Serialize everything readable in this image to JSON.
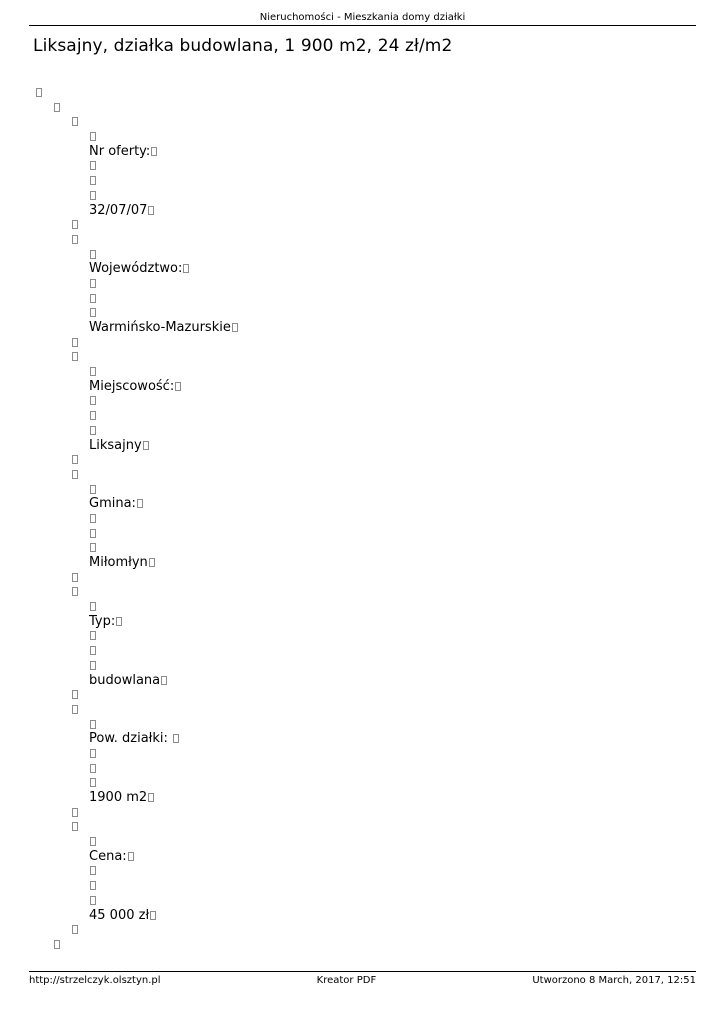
{
  "header": {
    "title": "Nieruchomości - Mieszkania domy działki"
  },
  "page_title": "Liksajny, działka budowlana, 1 900 m2, 24 zł/m2",
  "tree": {
    "rows": [
      {
        "indent": 0,
        "text": ""
      },
      {
        "indent": 1,
        "text": ""
      },
      {
        "indent": 2,
        "text": ""
      },
      {
        "indent": 3,
        "text": ""
      },
      {
        "indent": 3,
        "text": "Nr oferty:"
      },
      {
        "indent": 3,
        "text": ""
      },
      {
        "indent": 3,
        "text": ""
      },
      {
        "indent": 3,
        "text": ""
      },
      {
        "indent": 3,
        "text": "32/07/07"
      },
      {
        "indent": 2,
        "text": ""
      },
      {
        "indent": 2,
        "text": ""
      },
      {
        "indent": 3,
        "text": ""
      },
      {
        "indent": 3,
        "text": "Województwo:"
      },
      {
        "indent": 3,
        "text": ""
      },
      {
        "indent": 3,
        "text": ""
      },
      {
        "indent": 3,
        "text": ""
      },
      {
        "indent": 3,
        "text": "Warmińsko-Mazurskie"
      },
      {
        "indent": 2,
        "text": ""
      },
      {
        "indent": 2,
        "text": ""
      },
      {
        "indent": 3,
        "text": ""
      },
      {
        "indent": 3,
        "text": "Miejscowość:"
      },
      {
        "indent": 3,
        "text": ""
      },
      {
        "indent": 3,
        "text": ""
      },
      {
        "indent": 3,
        "text": ""
      },
      {
        "indent": 3,
        "text": "Liksajny"
      },
      {
        "indent": 2,
        "text": ""
      },
      {
        "indent": 2,
        "text": ""
      },
      {
        "indent": 3,
        "text": ""
      },
      {
        "indent": 3,
        "text": "Gmina:"
      },
      {
        "indent": 3,
        "text": ""
      },
      {
        "indent": 3,
        "text": ""
      },
      {
        "indent": 3,
        "text": ""
      },
      {
        "indent": 3,
        "text": "Miłomłyn"
      },
      {
        "indent": 2,
        "text": ""
      },
      {
        "indent": 2,
        "text": ""
      },
      {
        "indent": 3,
        "text": ""
      },
      {
        "indent": 3,
        "text": "Typ:"
      },
      {
        "indent": 3,
        "text": ""
      },
      {
        "indent": 3,
        "text": ""
      },
      {
        "indent": 3,
        "text": ""
      },
      {
        "indent": 3,
        "text": "budowlana"
      },
      {
        "indent": 2,
        "text": ""
      },
      {
        "indent": 2,
        "text": ""
      },
      {
        "indent": 3,
        "text": ""
      },
      {
        "indent": 3,
        "text": "Pow. działki: "
      },
      {
        "indent": 3,
        "text": ""
      },
      {
        "indent": 3,
        "text": ""
      },
      {
        "indent": 3,
        "text": ""
      },
      {
        "indent": 3,
        "text": "1900 m2"
      },
      {
        "indent": 2,
        "text": ""
      },
      {
        "indent": 2,
        "text": ""
      },
      {
        "indent": 3,
        "text": ""
      },
      {
        "indent": 3,
        "text": "Cena:"
      },
      {
        "indent": 3,
        "text": ""
      },
      {
        "indent": 3,
        "text": ""
      },
      {
        "indent": 3,
        "text": ""
      },
      {
        "indent": 3,
        "text": "45 000 zł"
      },
      {
        "indent": 2,
        "text": ""
      },
      {
        "indent": 1,
        "text": ""
      }
    ]
  },
  "footer": {
    "left": "http://strzelczyk.olsztyn.pl",
    "center": "Kreator PDF",
    "right": "Utworzono 8 March, 2017, 12:51"
  },
  "icons": {
    "missing_glyph": "empty-rectangle"
  },
  "colors": {
    "rule": "#000000",
    "missing_glyph_border": "#8c8c8c",
    "text": "#000000"
  }
}
